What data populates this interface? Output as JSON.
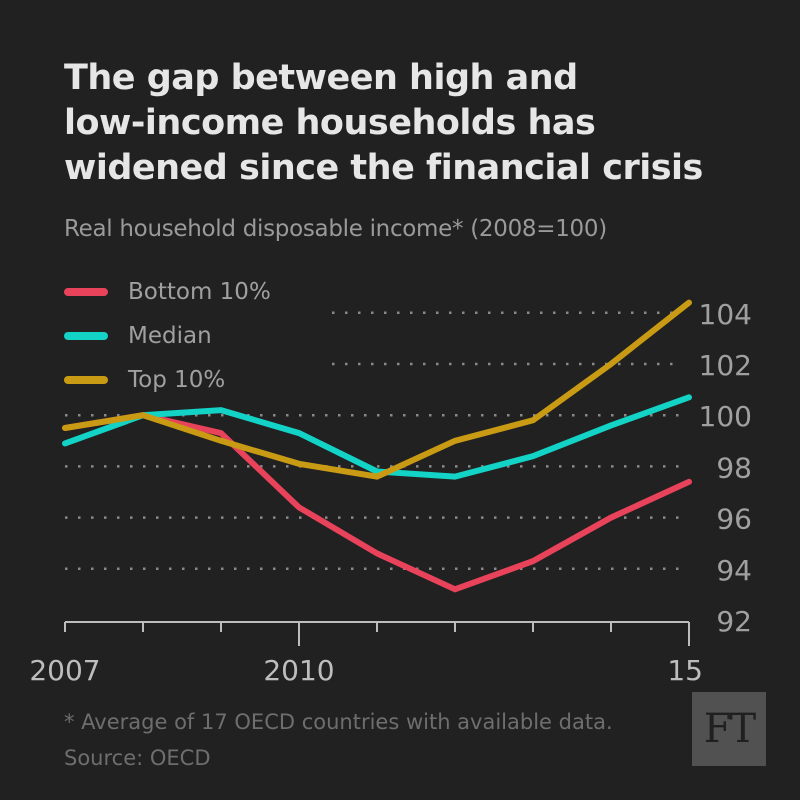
{
  "title_lines": [
    "The gap between high and",
    "low-income households has",
    "widened since the financial crisis"
  ],
  "subtitle": "Real household disposable income* (2008=100)",
  "footnote": "* Average of 17 OECD countries with available data. Source: OECD",
  "logo": "FT",
  "chart_data": {
    "type": "line",
    "title": "The gap between high and low-income households has widened since the financial crisis",
    "subtitle": "Real household disposable income* (2008=100)",
    "xlabel": "",
    "ylabel": "",
    "x": [
      2007,
      2008,
      2009,
      2010,
      2011,
      2012,
      2013,
      2014,
      2015
    ],
    "x_tick_labels": [
      {
        "x": 2007,
        "label": "2007"
      },
      {
        "x": 2010,
        "label": "2010"
      },
      {
        "x": 2015,
        "label": "15"
      }
    ],
    "xlim": [
      2007,
      2015
    ],
    "ylim": [
      92,
      104.8
    ],
    "y_ticks": [
      92,
      94,
      96,
      98,
      100,
      102,
      104
    ],
    "y_axis_side": "right",
    "grid": "horizontal-dotted",
    "legend_position": "top-left",
    "series": [
      {
        "name": "Bottom 10%",
        "color": "#e8435a",
        "values": [
          99.5,
          100.0,
          99.3,
          96.4,
          94.6,
          93.2,
          94.3,
          96.0,
          97.4
        ]
      },
      {
        "name": "Median",
        "color": "#12d3c6",
        "values": [
          98.9,
          100.0,
          100.2,
          99.3,
          97.8,
          97.6,
          98.4,
          99.6,
          100.7
        ]
      },
      {
        "name": "Top 10%",
        "color": "#c99a13",
        "values": [
          99.5,
          100.0,
          99.0,
          98.1,
          97.6,
          99.0,
          99.8,
          102.0,
          104.4
        ]
      }
    ]
  }
}
